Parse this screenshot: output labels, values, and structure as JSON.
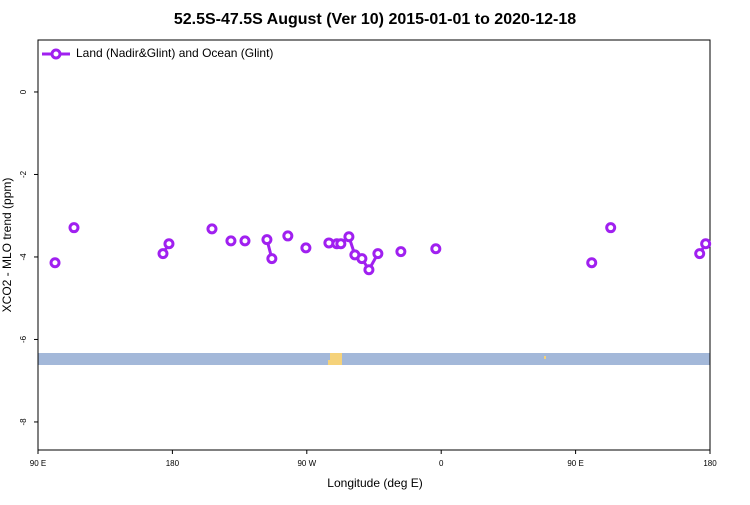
{
  "chart_data": {
    "type": "line",
    "title": "52.5S-47.5S August (Ver 10)   2015-01-01 to 2020-12-18",
    "xlabel": "Longitude (deg E)",
    "ylabel": "XCO2 - MLO trend (ppm)",
    "legend": "top-left",
    "xlim": [
      90,
      540
    ],
    "xticks": [
      {
        "value": 90,
        "label": "90 E"
      },
      180,
      {
        "value": 270,
        "label": "90 W"
      },
      {
        "value": 360,
        "label": "0"
      },
      {
        "value": 450,
        "label": "90 E"
      },
      {
        "value": 540,
        "label": "180"
      }
    ],
    "ylim": [
      -8.68,
      1.26
    ],
    "yticks": [
      0,
      -2,
      -4,
      -6,
      -8
    ],
    "series": [
      {
        "name": "Land (Nadir&Glint) and Ocean (Glint)",
        "color": "#a020f0",
        "x": [
          101.4,
          null,
          114.1,
          null,
          173.7,
          177.7,
          null,
          206.5,
          null,
          219.2,
          null,
          228.6,
          null,
          243.3,
          246.6,
          null,
          257.3,
          null,
          269.4,
          null,
          284.8,
          290.1,
          292.8,
          298.2,
          302.2,
          306.9,
          311.6,
          317.6,
          null,
          333.0,
          null,
          356.4,
          null,
          460.8,
          null,
          473.5,
          null,
          533.1,
          537.1
        ],
        "values": [
          -4.14,
          null,
          -3.29,
          null,
          -3.92,
          -3.68,
          null,
          -3.32,
          null,
          -3.61,
          null,
          -3.61,
          null,
          -3.58,
          -4.04,
          null,
          -3.49,
          null,
          -3.78,
          null,
          -3.66,
          -3.68,
          -3.68,
          -3.51,
          -3.95,
          -4.04,
          -4.31,
          -3.92,
          null,
          -3.87,
          null,
          -3.8,
          null,
          -4.14,
          null,
          -3.29,
          null,
          -3.92,
          -3.68
        ]
      }
    ]
  }
}
